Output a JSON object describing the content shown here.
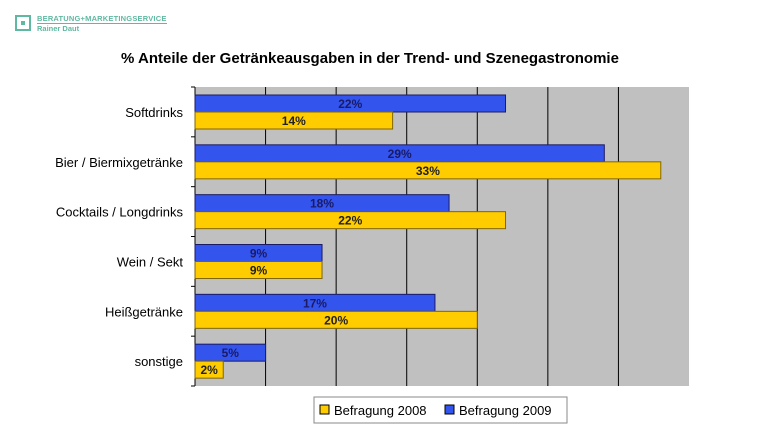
{
  "logo": {
    "line1": "BERATUNG+MARKETINGSERVICE",
    "line2": "Rainer Daut"
  },
  "chart_data": {
    "type": "bar",
    "orientation": "horizontal",
    "title": "% Anteile der Getränkeausgaben in der Trend- und Szenegastronomie",
    "categories": [
      "Softdrinks",
      "Bier / Biermixgetränke",
      "Cocktails / Longdrinks",
      "Wein / Sekt",
      "Heißgetränke",
      "sonstige"
    ],
    "series": [
      {
        "name": "Befragung 2009",
        "color": "#3355ee",
        "values": [
          22,
          29,
          18,
          9,
          17,
          5
        ],
        "labels": [
          "22%",
          "29%",
          "18%",
          "9%",
          "17%",
          "5%"
        ]
      },
      {
        "name": "Befragung 2008",
        "color": "#ffcc00",
        "values": [
          14,
          33,
          22,
          9,
          20,
          2
        ],
        "labels": [
          "14%",
          "33%",
          "22%",
          "9%",
          "20%",
          "2%"
        ]
      }
    ],
    "legend_order": [
      "Befragung 2008",
      "Befragung 2009"
    ],
    "xlim": [
      0,
      35
    ],
    "x_grid_step": 5,
    "grid": true,
    "plot_background": "#c0c0c0",
    "legend_position": "bottom"
  }
}
